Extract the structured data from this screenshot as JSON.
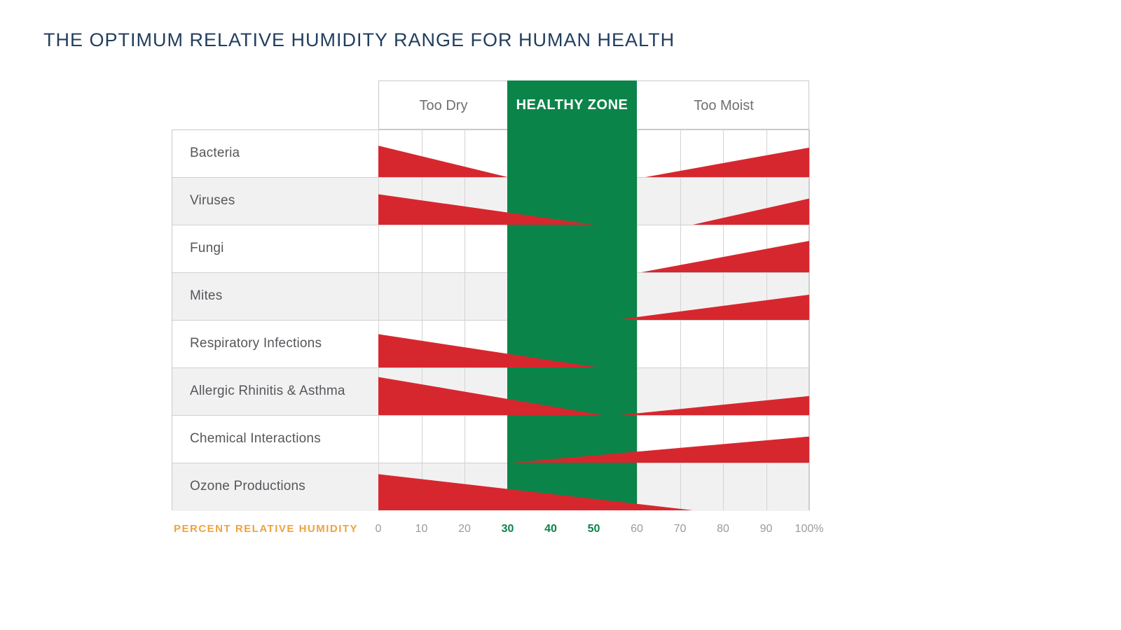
{
  "page": {
    "title": "THE OPTIMUM RELATIVE HUMIDITY RANGE FOR HUMAN HEALTH"
  },
  "header_zones": {
    "too_dry": "Too Dry",
    "healthy_zone": "HEALTHY ZONE",
    "too_moist": "Too Moist"
  },
  "axis": {
    "label": "PERCENT RELATIVE HUMIDITY",
    "ticks": [
      {
        "label": "0",
        "healthy": false
      },
      {
        "label": "10",
        "healthy": false
      },
      {
        "label": "20",
        "healthy": false
      },
      {
        "label": "30",
        "healthy": true
      },
      {
        "label": "40",
        "healthy": true
      },
      {
        "label": "50",
        "healthy": true
      },
      {
        "label": "60",
        "healthy": false
      },
      {
        "label": "70",
        "healthy": false
      },
      {
        "label": "80",
        "healthy": false
      },
      {
        "label": "90",
        "healthy": false
      },
      {
        "label": "100%",
        "healthy": false
      }
    ]
  },
  "colors": {
    "hazard_red": "#d7272e",
    "healthy_green": "#0b8449",
    "title_navy": "#223e5e",
    "axis_orange": "#f0a23c",
    "tick_gray": "#9b9b9b",
    "row_label_gray": "#55575a",
    "zone_label_gray": "#6e7073",
    "row_alt_bg": "#f1f1f2",
    "grid_line": "#d3d3d3",
    "border": "#c9c9c9"
  },
  "chart_data": {
    "type": "area",
    "title": "THE OPTIMUM RELATIVE HUMIDITY RANGE FOR HUMAN HEALTH",
    "x_label": "PERCENT RELATIVE HUMIDITY",
    "x_range": [
      0,
      100
    ],
    "x_ticks": [
      0,
      10,
      20,
      30,
      40,
      50,
      60,
      70,
      80,
      90,
      100
    ],
    "healthy_zone": {
      "start": 30,
      "end": 60,
      "label": "HEALTHY ZONE"
    },
    "zones": {
      "left_label": "Too Dry",
      "right_label": "Too Moist"
    },
    "grid": true,
    "legend": "none",
    "note": "Red wedges show hazard intensity vs relative humidity; wedge thick end = worst, tapering to zero. side dry = hazard when too dry (thick at start), side moist = hazard when too moist (thick at end). peak_height is fraction of row height.",
    "rows": [
      {
        "label": "Bacteria",
        "wedges": [
          {
            "side": "dry",
            "start": 0,
            "end": 30,
            "peak_height": 0.66
          },
          {
            "side": "moist",
            "start": 62,
            "end": 100,
            "peak_height": 0.62
          }
        ]
      },
      {
        "label": "Viruses",
        "wedges": [
          {
            "side": "dry",
            "start": 0,
            "end": 50,
            "peak_height": 0.64
          },
          {
            "side": "moist",
            "start": 73,
            "end": 100,
            "peak_height": 0.55
          }
        ]
      },
      {
        "label": "Fungi",
        "wedges": [
          {
            "side": "moist",
            "start": 61,
            "end": 100,
            "peak_height": 0.66
          }
        ]
      },
      {
        "label": "Mites",
        "wedges": [
          {
            "side": "moist",
            "start": 55,
            "end": 100,
            "peak_height": 0.53
          }
        ]
      },
      {
        "label": "Respiratory Infections",
        "wedges": [
          {
            "side": "dry",
            "start": 0,
            "end": 51,
            "peak_height": 0.7
          }
        ]
      },
      {
        "label": "Allergic Rhinitis & Asthma",
        "wedges": [
          {
            "side": "dry",
            "start": 0,
            "end": 52,
            "peak_height": 0.8
          },
          {
            "side": "moist",
            "start": 56,
            "end": 100,
            "peak_height": 0.4
          }
        ]
      },
      {
        "label": "Chemical Interactions",
        "wedges": [
          {
            "side": "moist",
            "start": 31,
            "end": 100,
            "peak_height": 0.55
          }
        ]
      },
      {
        "label": "Ozone Productions",
        "wedges": [
          {
            "side": "dry",
            "start": 0,
            "end": 73,
            "peak_height": 0.76
          }
        ]
      }
    ]
  }
}
